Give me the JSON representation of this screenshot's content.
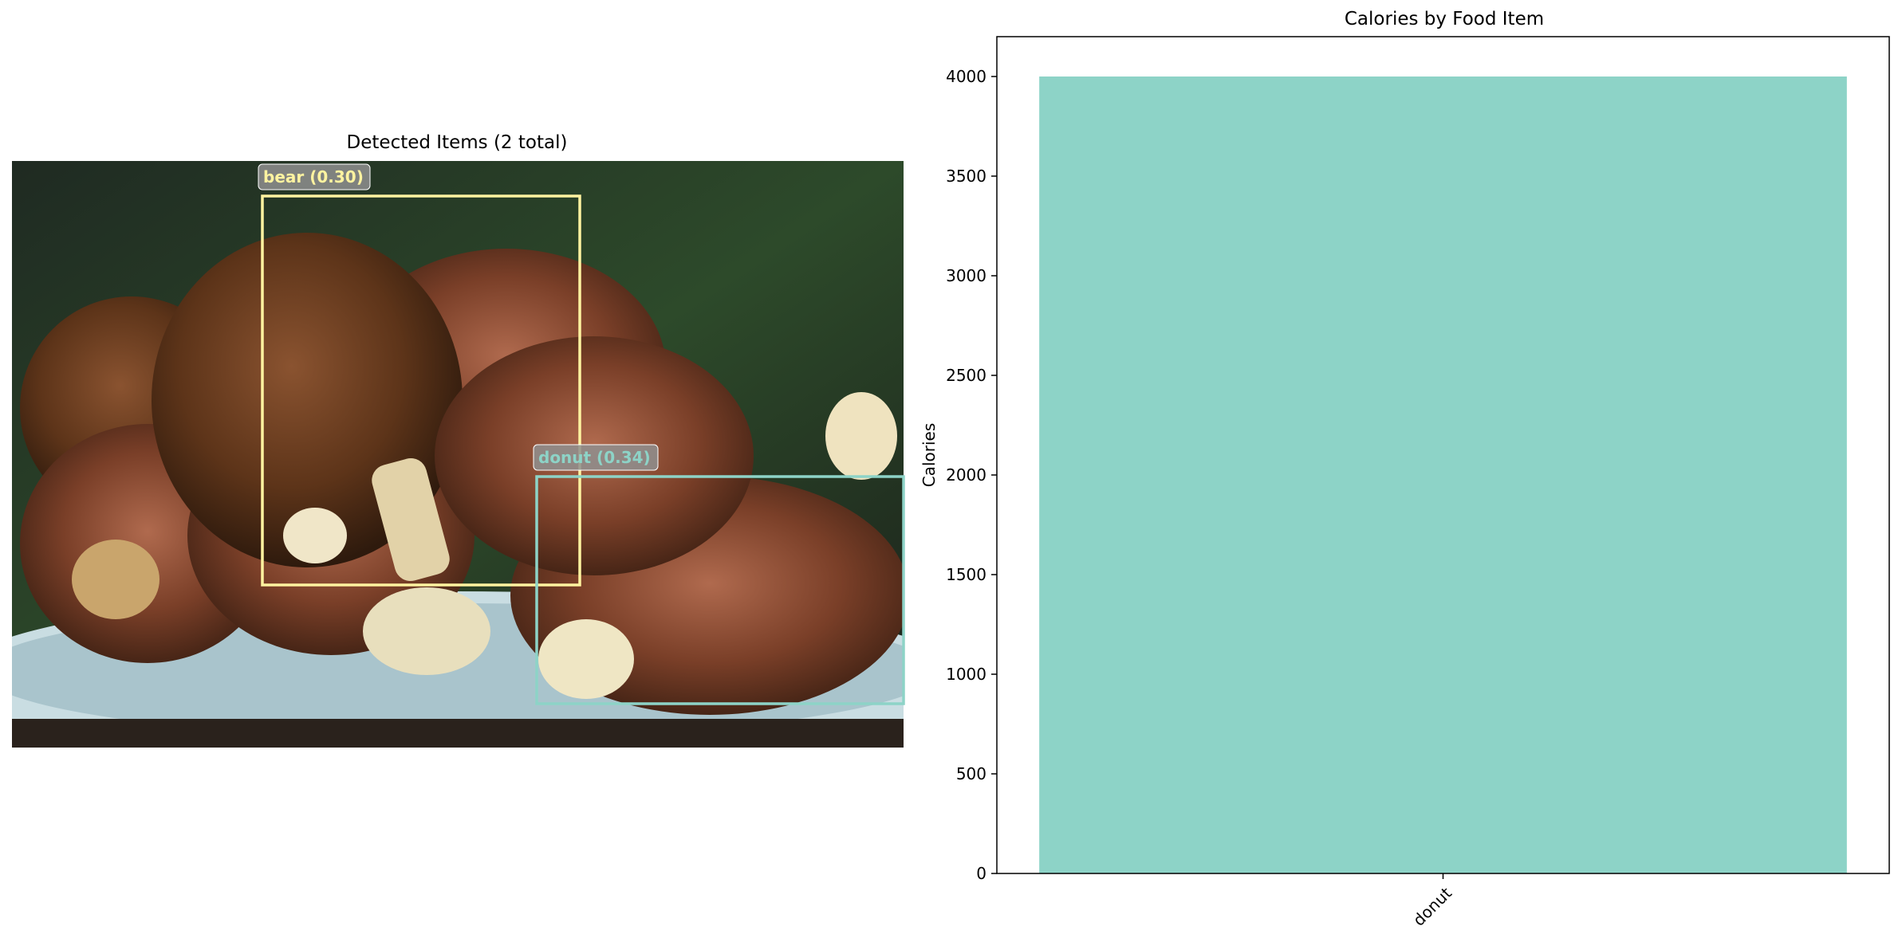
{
  "detection_panel": {
    "title": "Detected Items (2 total)",
    "detections": [
      {
        "label": "bear (0.30)",
        "color": "#fff3a0"
      },
      {
        "label": "donut (0.34)",
        "color": "#8dd3c7"
      }
    ]
  },
  "chart_data": {
    "type": "bar",
    "title": "Calories by Food Item",
    "xlabel": "",
    "ylabel": "Calories",
    "categories": [
      "donut"
    ],
    "values": [
      4000
    ],
    "ylim": [
      0,
      4200
    ],
    "yticks": [
      "0",
      "500",
      "1000",
      "1500",
      "2000",
      "2500",
      "3000",
      "3500",
      "4000"
    ],
    "bar_color": "#8dd3c7",
    "grid": false,
    "legend": "none"
  }
}
